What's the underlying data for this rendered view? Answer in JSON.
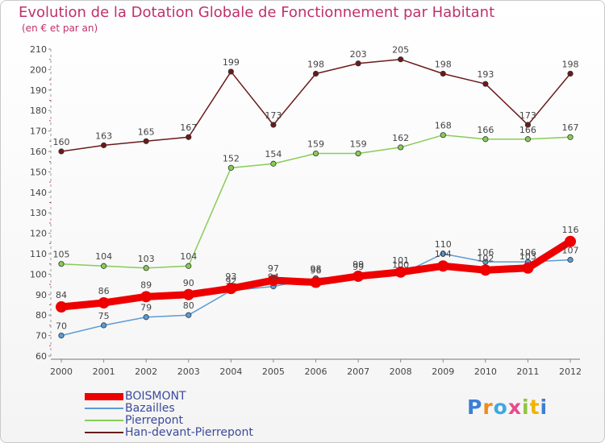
{
  "title": "Evolution de la Dotation Globale de Fonctionnement par Habitant",
  "subtitle": "(en € et par an)",
  "logo_text": "Proxiti",
  "chart_data": {
    "type": "line",
    "title": "Evolution de la Dotation Globale de Fonctionnement par Habitant",
    "ylabel": "(en € et par an)",
    "xlabel": "",
    "categories": [
      "2000",
      "2001",
      "2002",
      "2003",
      "2004",
      "2005",
      "2006",
      "2007",
      "2008",
      "2009",
      "2010",
      "2011",
      "2012"
    ],
    "ylim": [
      60,
      210
    ],
    "yticks": [
      60,
      70,
      80,
      90,
      100,
      110,
      120,
      130,
      140,
      150,
      160,
      170,
      180,
      190,
      200,
      210
    ],
    "grid": false,
    "series": [
      {
        "name": "Han-devant-Pierrepont",
        "color": "#6b1a1a",
        "values": [
          160,
          163,
          165,
          167,
          199,
          173,
          198,
          203,
          205,
          198,
          193,
          173,
          198
        ]
      },
      {
        "name": "Pierrepont",
        "color": "#88cc55",
        "values": [
          105,
          104,
          103,
          104,
          152,
          154,
          159,
          159,
          162,
          168,
          166,
          166,
          167
        ]
      },
      {
        "name": "Bazailles",
        "color": "#5b9bd5",
        "values": [
          70,
          75,
          79,
          80,
          92,
          94,
          98,
          99,
          100,
          110,
          106,
          106,
          107
        ]
      },
      {
        "name": "BOISMONT",
        "color": "#ee0000",
        "values": [
          84,
          86,
          89,
          90,
          93,
          97,
          96,
          99,
          101,
          104,
          102,
          103,
          116
        ]
      }
    ],
    "legend": [
      "BOISMONT",
      "Bazailles",
      "Pierrepont",
      "Han-devant-Pierrepont"
    ]
  }
}
